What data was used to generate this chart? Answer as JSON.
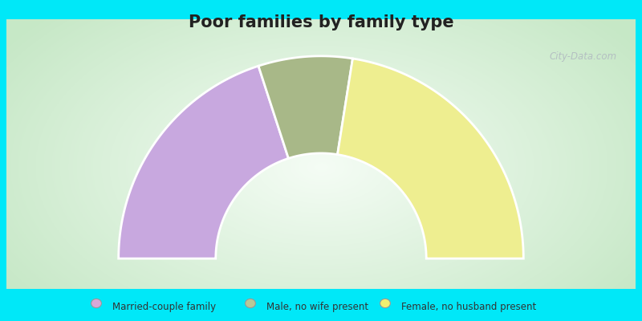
{
  "title": "Poor families by family type",
  "title_fontsize": 15,
  "bg_cyan": "#00e8f8",
  "chart_bg_colors": [
    "#b8e8c8",
    "#dff5e8",
    "#eefaf4",
    "#f8fffc",
    "#ffffff"
  ],
  "segments": [
    {
      "label": "Married-couple family",
      "value": 40,
      "color": "#c8a8df"
    },
    {
      "label": "Male, no wife present",
      "value": 15,
      "color": "#a8b888"
    },
    {
      "label": "Female, no husband present",
      "value": 45,
      "color": "#eeee90"
    }
  ],
  "legend_marker_colors": [
    "#d8a8d8",
    "#b8c898",
    "#f0f070"
  ],
  "donut_inner_r": 0.52,
  "donut_outer_r": 1.0,
  "watermark": "City-Data.com"
}
